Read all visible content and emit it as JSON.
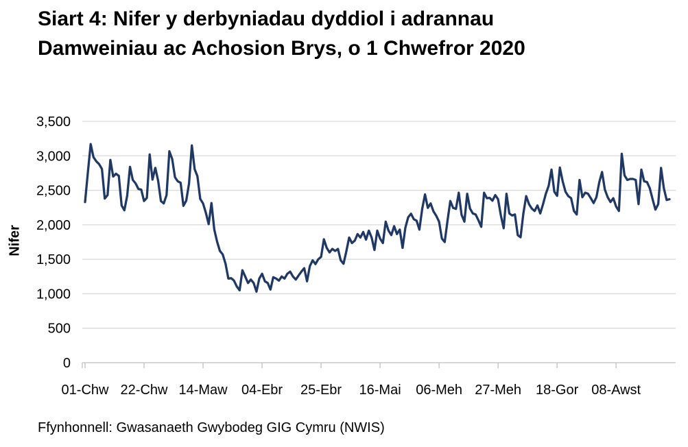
{
  "title": {
    "line1": "Siart 4: Nifer y derbyniadau dyddiol i adrannau",
    "line2": "Damweiniau ac Achosion Brys, o 1 Chwefror 2020"
  },
  "source": "Ffynhonnell: Gwasanaeth Gwybodeg GIG Cymru (NWIS)",
  "colors": {
    "line": "#1f3864",
    "grid": "#d9d9d9",
    "axis": "#bfbfbf",
    "text": "#000000",
    "background": "#ffffff"
  },
  "chart_data": {
    "type": "line",
    "title": "Siart 4: Nifer y derbyniadau dyddiol i adrannau Damweiniau ac Achosion Brys, o 1 Chwefror 2020",
    "xlabel": "",
    "ylabel": "Nifer",
    "ylim": [
      0,
      3500
    ],
    "y_tick_step": 500,
    "y_tick_labels": [
      "0",
      "500",
      "1,000",
      "1,500",
      "2,000",
      "2,500",
      "3,000",
      "3,500"
    ],
    "x_tick_labels": [
      "01-Chw",
      "22-Chw",
      "14-Maw",
      "04-Ebr",
      "25-Ebr",
      "16-Mai",
      "06-Meh",
      "27-Meh",
      "18-Gor",
      "08-Awst"
    ],
    "x_tick_day_index": [
      0,
      21,
      42,
      63,
      84,
      105,
      126,
      147,
      168,
      189
    ],
    "x_unit": "diwrnod (dyddiol o 1 Chwefror 2020)",
    "grid": "horizontal",
    "legend": "none",
    "series": [
      {
        "name": "Derbyniadau dyddiol i adrannau Damweiniau ac Achosion Brys",
        "color": "#1f3864",
        "values": [
          2330,
          2760,
          3170,
          2980,
          2920,
          2880,
          2810,
          2380,
          2430,
          2940,
          2700,
          2740,
          2710,
          2280,
          2210,
          2420,
          2840,
          2650,
          2600,
          2520,
          2510,
          2345,
          2390,
          3020,
          2655,
          2825,
          2640,
          2345,
          2310,
          2430,
          3065,
          2955,
          2690,
          2630,
          2610,
          2275,
          2350,
          2600,
          3150,
          2805,
          2705,
          2375,
          2310,
          2175,
          2010,
          2315,
          1930,
          1755,
          1620,
          1570,
          1435,
          1220,
          1225,
          1190,
          1105,
          1050,
          1340,
          1250,
          1155,
          1205,
          1155,
          1030,
          1220,
          1290,
          1180,
          1155,
          1060,
          1240,
          1220,
          1190,
          1250,
          1220,
          1290,
          1320,
          1250,
          1205,
          1265,
          1320,
          1370,
          1180,
          1400,
          1485,
          1430,
          1500,
          1535,
          1790,
          1665,
          1600,
          1650,
          1620,
          1650,
          1485,
          1435,
          1615,
          1815,
          1735,
          1770,
          1865,
          1815,
          1895,
          1785,
          1915,
          1815,
          1635,
          1915,
          1800,
          1735,
          2045,
          1915,
          1850,
          1980,
          1865,
          1930,
          1665,
          1960,
          2110,
          2160,
          2080,
          2060,
          1930,
          2230,
          2440,
          2245,
          2310,
          2195,
          2130,
          2045,
          1800,
          1750,
          2060,
          2345,
          2245,
          2230,
          2465,
          2145,
          2045,
          2450,
          2235,
          2165,
          2150,
          2065,
          1970,
          2465,
          2385,
          2390,
          2350,
          2430,
          2370,
          2135,
          1950,
          2450,
          2165,
          2135,
          2150,
          1850,
          1820,
          2165,
          2415,
          2300,
          2235,
          2200,
          2280,
          2165,
          2300,
          2450,
          2565,
          2800,
          2480,
          2420,
          2830,
          2630,
          2480,
          2415,
          2385,
          2200,
          2150,
          2650,
          2400,
          2465,
          2450,
          2385,
          2315,
          2400,
          2615,
          2765,
          2510,
          2400,
          2330,
          2385,
          2265,
          2200,
          3030,
          2715,
          2650,
          2665,
          2665,
          2650,
          2300,
          2800,
          2630,
          2620,
          2530,
          2370,
          2220,
          2300,
          2825,
          2530,
          2360,
          2370
        ]
      }
    ]
  }
}
